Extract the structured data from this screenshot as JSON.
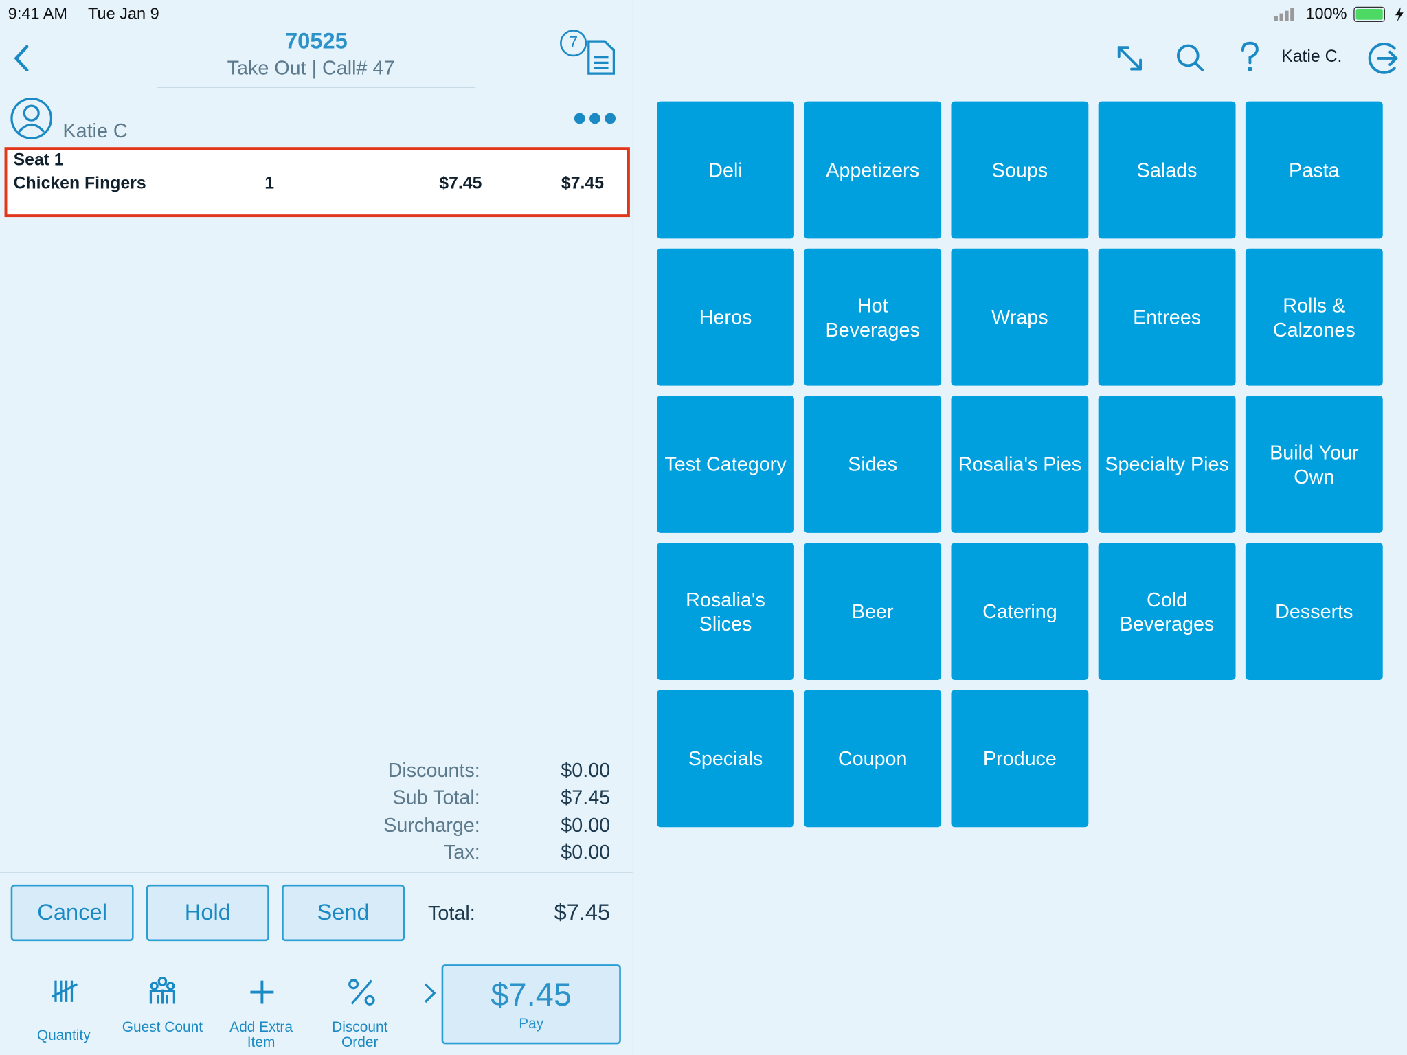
{
  "status": {
    "time": "9:41 AM",
    "date": "Tue Jan 9",
    "battery": "100%"
  },
  "header": {
    "order": "70525",
    "subtitle": "Take Out | Call# 47",
    "badge": "7",
    "user": "Katie C."
  },
  "customer": "Katie C",
  "item": {
    "seat": "Seat 1",
    "name": "Chicken Fingers",
    "qty": "1",
    "price": "$7.45",
    "total": "$7.45"
  },
  "totals": [
    {
      "label": "Discounts:",
      "value": "$0.00"
    },
    {
      "label": "Sub Total:",
      "value": "$7.45"
    },
    {
      "label": "Surcharge:",
      "value": "$0.00"
    },
    {
      "label": "Tax:",
      "value": "$0.00"
    }
  ],
  "actions": [
    "Cancel",
    "Hold",
    "Send"
  ],
  "grand_total": {
    "label": "Total:",
    "value": "$7.45"
  },
  "toolbar": [
    "Quantity",
    "Guest Count",
    "Add Extra Item",
    "Discount Order"
  ],
  "pay": {
    "amount": "$7.45",
    "label": "Pay"
  },
  "categories": [
    "Deli",
    "Appetizers",
    "Soups",
    "Salads",
    "Pasta",
    "Heros",
    "Hot Beverages",
    "Wraps",
    "Entrees",
    "Rolls & Calzones",
    "Test Category",
    "Sides",
    "Rosalia's Pies",
    "Specialty Pies",
    "Build Your Own",
    "Rosalia's Slices",
    "Beer",
    "Catering",
    "Cold Beverages",
    "Desserts",
    "Specials",
    "Coupon",
    "Produce"
  ]
}
